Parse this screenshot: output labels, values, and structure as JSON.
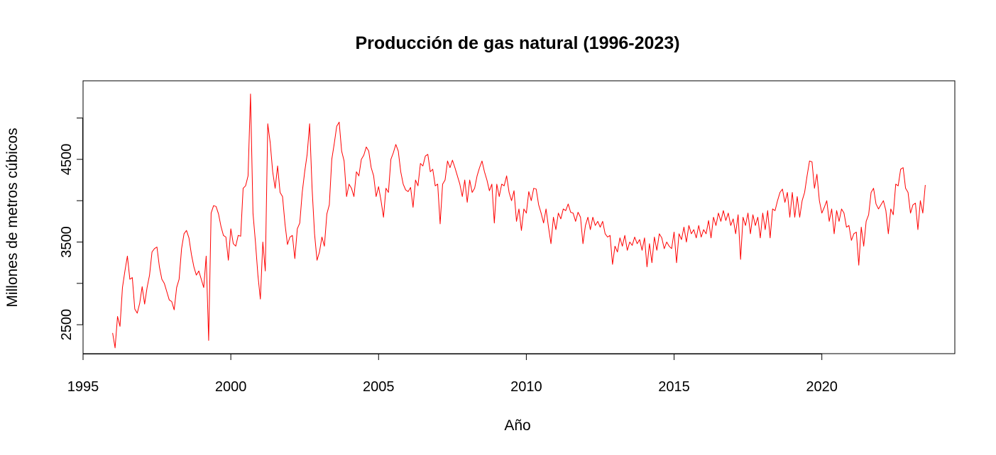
{
  "chart_data": {
    "type": "line",
    "title": "Producción de gas natural (1996-2023)",
    "xlabel": "Año",
    "ylabel": "Millones de metros cúbicos",
    "xlim": [
      1995,
      2024.5
    ],
    "ylim": [
      2150,
      5450
    ],
    "x_ticks": [
      1995,
      2000,
      2005,
      2010,
      2015,
      2020
    ],
    "y_ticks": [
      2500,
      3500,
      4500
    ],
    "grid": false,
    "legend": "none",
    "series": [
      {
        "color": "#ff0000",
        "x_start": 1996.0,
        "x_step": 0.0833333,
        "values": [
          2400,
          2220,
          2600,
          2480,
          2950,
          3150,
          3330,
          3050,
          3070,
          2690,
          2640,
          2760,
          2960,
          2750,
          2950,
          3100,
          3380,
          3420,
          3440,
          3200,
          3050,
          3000,
          2900,
          2800,
          2780,
          2680,
          2950,
          3050,
          3420,
          3600,
          3640,
          3550,
          3350,
          3200,
          3100,
          3150,
          3050,
          2950,
          3330,
          2310,
          3850,
          3940,
          3930,
          3840,
          3690,
          3580,
          3560,
          3280,
          3660,
          3480,
          3450,
          3580,
          3570,
          4150,
          4180,
          4300,
          5290,
          3850,
          3500,
          3100,
          2810,
          3500,
          3150,
          4930,
          4700,
          4350,
          4150,
          4420,
          4100,
          4050,
          3720,
          3470,
          3560,
          3580,
          3300,
          3660,
          3730,
          4100,
          4350,
          4560,
          4930,
          4150,
          3600,
          3280,
          3380,
          3560,
          3450,
          3840,
          3950,
          4500,
          4690,
          4900,
          4950,
          4600,
          4480,
          4050,
          4200,
          4150,
          4050,
          4350,
          4300,
          4500,
          4550,
          4650,
          4600,
          4400,
          4300,
          4050,
          4170,
          4000,
          3800,
          4150,
          4100,
          4500,
          4580,
          4680,
          4600,
          4350,
          4200,
          4130,
          4110,
          4160,
          3920,
          4250,
          4180,
          4450,
          4420,
          4540,
          4560,
          4350,
          4380,
          4180,
          4200,
          3720,
          4200,
          4250,
          4480,
          4400,
          4490,
          4400,
          4300,
          4200,
          4050,
          4250,
          3980,
          4250,
          4100,
          4150,
          4300,
          4400,
          4480,
          4350,
          4250,
          4120,
          4200,
          3730,
          4200,
          4050,
          4200,
          4180,
          4300,
          4100,
          4000,
          4120,
          3750,
          3900,
          3640,
          3900,
          3850,
          4110,
          4000,
          4150,
          4140,
          3950,
          3850,
          3730,
          3900,
          3680,
          3480,
          3800,
          3650,
          3850,
          3780,
          3900,
          3880,
          3960,
          3860,
          3850,
          3750,
          3860,
          3800,
          3480,
          3700,
          3800,
          3650,
          3800,
          3700,
          3750,
          3680,
          3750,
          3600,
          3560,
          3580,
          3230,
          3450,
          3380,
          3550,
          3450,
          3580,
          3400,
          3500,
          3460,
          3560,
          3480,
          3530,
          3400,
          3550,
          3200,
          3480,
          3250,
          3560,
          3400,
          3600,
          3550,
          3420,
          3500,
          3450,
          3420,
          3620,
          3250,
          3600,
          3530,
          3680,
          3500,
          3700,
          3600,
          3650,
          3550,
          3700,
          3560,
          3650,
          3600,
          3760,
          3550,
          3800,
          3700,
          3850,
          3750,
          3880,
          3760,
          3850,
          3700,
          3780,
          3600,
          3830,
          3290,
          3800,
          3700,
          3850,
          3600,
          3830,
          3700,
          3800,
          3550,
          3850,
          3650,
          3880,
          3550,
          3900,
          3880,
          4000,
          4100,
          4140,
          3980,
          4100,
          3800,
          4100,
          3800,
          4050,
          3800,
          4000,
          4100,
          4300,
          4480,
          4470,
          4150,
          4320,
          4000,
          3850,
          3920,
          4000,
          3750,
          3900,
          3600,
          3880,
          3750,
          3900,
          3850,
          3680,
          3700,
          3520,
          3600,
          3620,
          3220,
          3680,
          3450,
          3750,
          3830,
          4100,
          4150,
          3960,
          3900,
          3950,
          4000,
          3880,
          3600,
          3900,
          3830,
          4200,
          4180,
          4380,
          4400,
          4150,
          4100,
          3850,
          3950,
          3970,
          3650,
          4000,
          3850,
          4190
        ]
      }
    ]
  }
}
